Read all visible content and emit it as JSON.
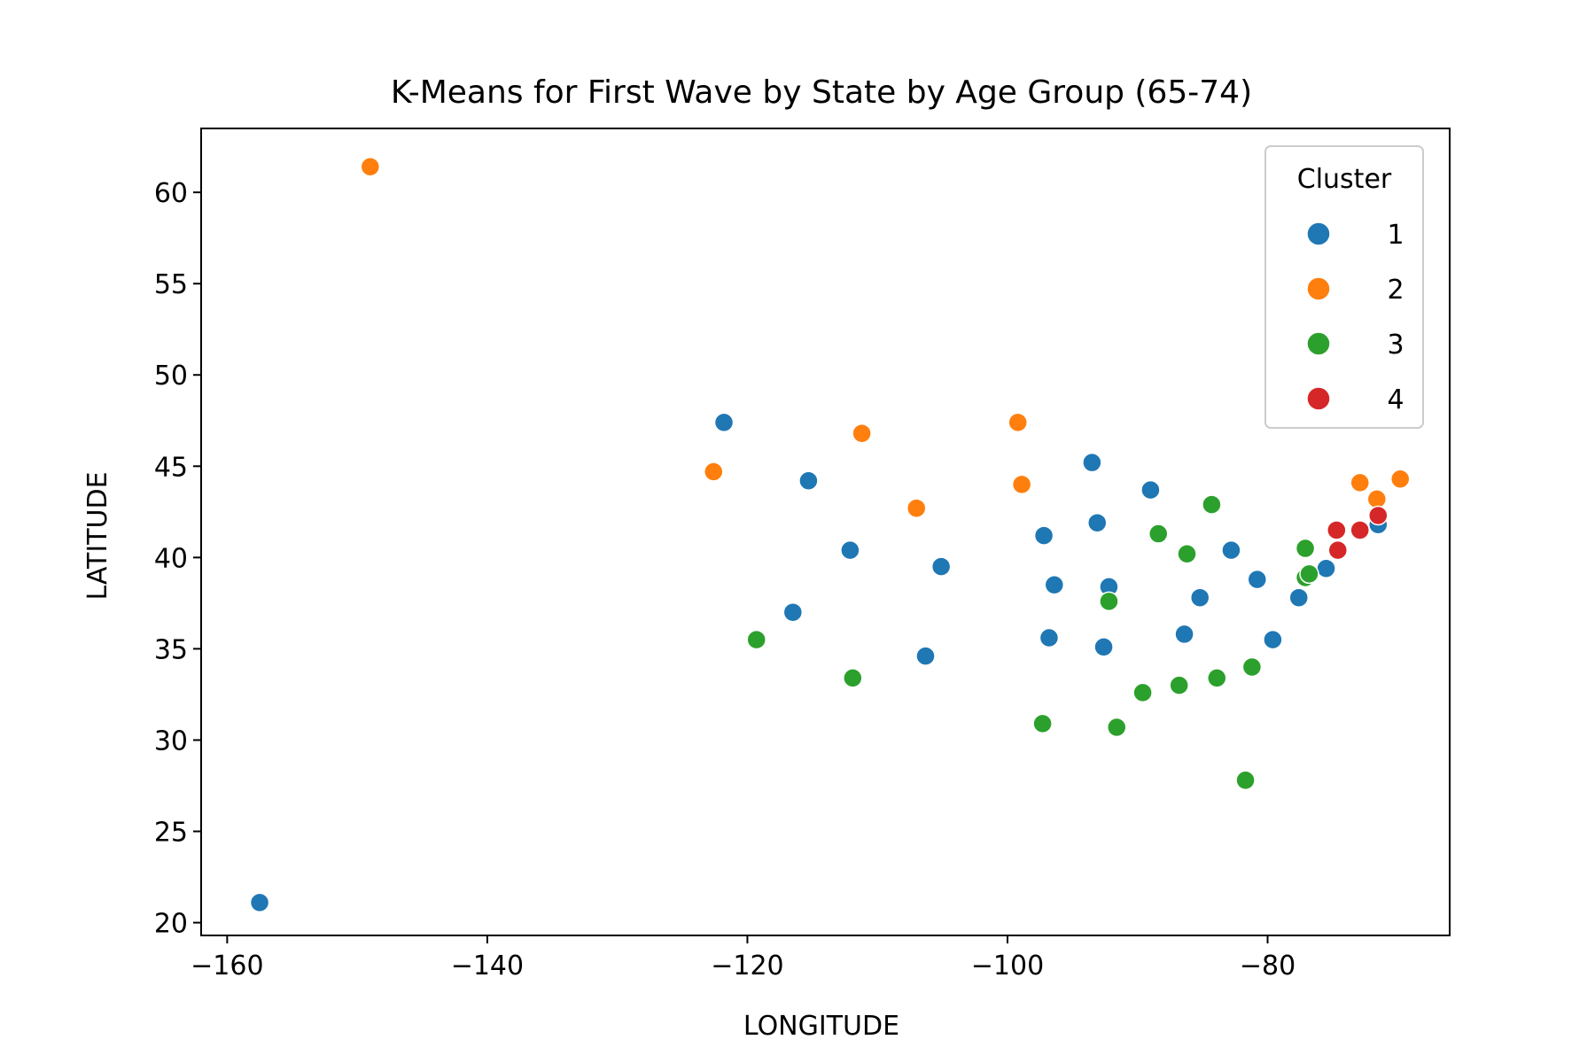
{
  "chart_data": {
    "type": "scatter",
    "title": "K-Means for First Wave by State by Age Group (65-74)",
    "xlabel": "LONGITUDE",
    "ylabel": "LATITUDE",
    "xlim": [
      -162,
      -66
    ],
    "ylim": [
      19.3,
      63.5
    ],
    "xticks": [
      -160,
      -140,
      -120,
      -100,
      -80
    ],
    "xtick_labels": [
      "−160",
      "−140",
      "−120",
      "−100",
      "−80"
    ],
    "yticks": [
      20,
      25,
      30,
      35,
      40,
      45,
      50,
      55,
      60
    ],
    "ytick_labels": [
      "20",
      "25",
      "30",
      "35",
      "40",
      "45",
      "50",
      "55",
      "60"
    ],
    "grid": false,
    "legend": {
      "title": "Cluster",
      "placement": "top-right"
    },
    "series": [
      {
        "name": "1",
        "color": "#1f77b4",
        "points": [
          [
            -157.5,
            21.1
          ],
          [
            -121.8,
            47.4
          ],
          [
            -115.3,
            44.2
          ],
          [
            -112.1,
            40.4
          ],
          [
            -116.5,
            37.0
          ],
          [
            -106.3,
            34.6
          ],
          [
            -105.1,
            39.5
          ],
          [
            -97.2,
            41.2
          ],
          [
            -96.4,
            38.5
          ],
          [
            -96.8,
            35.6
          ],
          [
            -93.5,
            45.2
          ],
          [
            -93.1,
            41.9
          ],
          [
            -92.2,
            38.4
          ],
          [
            -92.6,
            35.1
          ],
          [
            -89.0,
            43.7
          ],
          [
            -82.8,
            40.4
          ],
          [
            -85.2,
            37.8
          ],
          [
            -86.4,
            35.8
          ],
          [
            -80.8,
            38.8
          ],
          [
            -79.6,
            35.5
          ],
          [
            -77.6,
            37.8
          ],
          [
            -75.5,
            39.4
          ],
          [
            -71.5,
            41.8
          ]
        ]
      },
      {
        "name": "2",
        "color": "#ff7f0e",
        "points": [
          [
            -149.0,
            61.4
          ],
          [
            -122.6,
            44.7
          ],
          [
            -111.2,
            46.8
          ],
          [
            -107.0,
            42.7
          ],
          [
            -99.2,
            47.4
          ],
          [
            -98.9,
            44.0
          ],
          [
            -72.9,
            44.1
          ],
          [
            -71.6,
            43.2
          ],
          [
            -69.8,
            44.3
          ]
        ]
      },
      {
        "name": "3",
        "color": "#2ca02c",
        "points": [
          [
            -119.3,
            35.5
          ],
          [
            -111.9,
            33.4
          ],
          [
            -97.3,
            30.9
          ],
          [
            -92.2,
            37.6
          ],
          [
            -91.6,
            30.7
          ],
          [
            -89.6,
            32.6
          ],
          [
            -88.4,
            41.3
          ],
          [
            -86.8,
            33.0
          ],
          [
            -86.2,
            40.2
          ],
          [
            -84.3,
            42.9
          ],
          [
            -83.9,
            33.4
          ],
          [
            -81.2,
            34.0
          ],
          [
            -81.7,
            27.8
          ],
          [
            -77.1,
            40.5
          ],
          [
            -77.1,
            38.9
          ],
          [
            -76.8,
            39.1
          ]
        ]
      },
      {
        "name": "4",
        "color": "#d62728",
        "points": [
          [
            -74.7,
            41.5
          ],
          [
            -74.6,
            40.4
          ],
          [
            -72.9,
            41.5
          ],
          [
            -71.5,
            42.3
          ]
        ]
      }
    ]
  }
}
